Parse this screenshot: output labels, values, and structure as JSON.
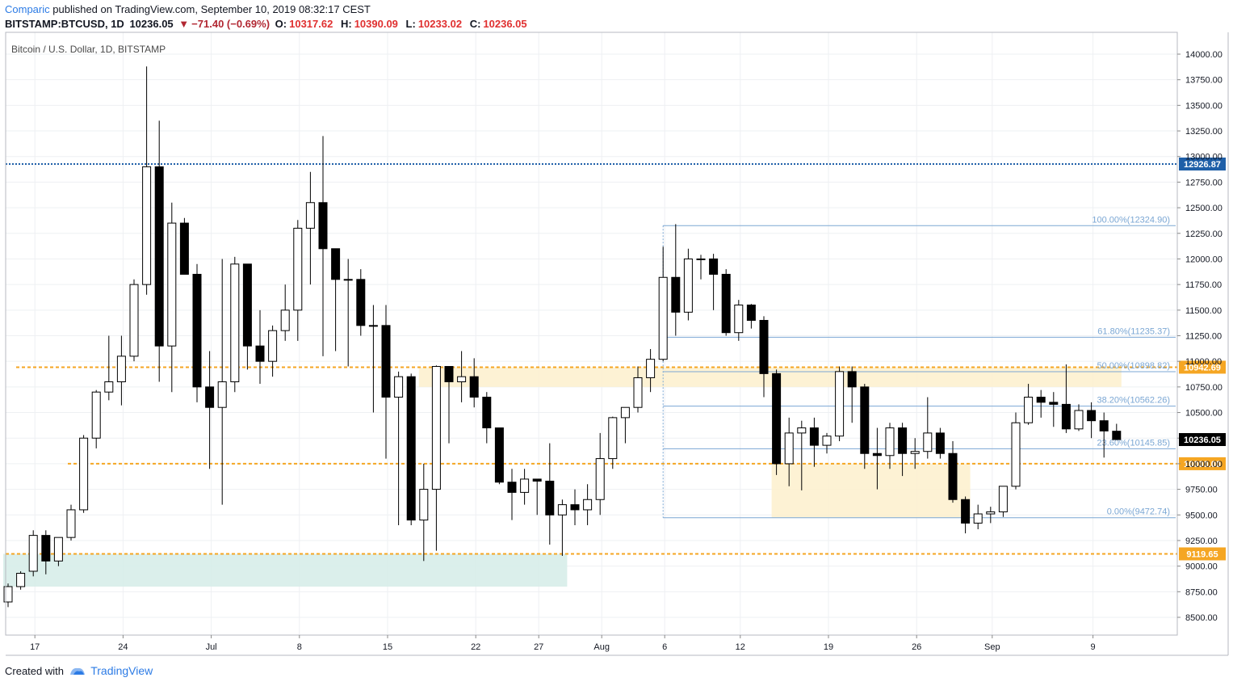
{
  "header": {
    "author": "Comparic",
    "published_text": "published on TradingView.com, September 10, 2019 08:32:17 CEST",
    "symbol": "BITSTAMP:BTCUSD, 1D",
    "last_price": "10236.05",
    "change": "−71.40 (−0.69%)",
    "open_label": "O:",
    "open": "10317.62",
    "high_label": "H:",
    "high": "10390.09",
    "low_label": "L:",
    "low": "10233.02",
    "close_label": "C:",
    "close": "10236.05"
  },
  "footer": {
    "created_with": "Created with",
    "brand": "TradingView"
  },
  "colors": {
    "up_fill": "#ffffff",
    "down_fill": "#000000",
    "wick": "#000000",
    "resistance_blue": "#1f5fa8",
    "level_orange": "#f5a623",
    "fib_blue": "#7ba7d4",
    "zone_yellow": "#fdf0cc",
    "zone_teal": "#d5ece7",
    "axis_text": "#131722",
    "last_price_bg": "#000000"
  },
  "chart_data": {
    "type": "candlestick",
    "title": "Bitcoin / U.S. Dollar, 1D, BITSTAMP",
    "ylim": [
      8300,
      14250
    ],
    "y_ticks": [
      8500,
      8750,
      9000,
      9250,
      9500,
      9750,
      10000,
      10250,
      10500,
      10750,
      11000,
      11250,
      11500,
      11750,
      12000,
      12250,
      12500,
      12750,
      13000,
      13250,
      13500,
      13750,
      14000
    ],
    "x_ticks": [
      {
        "i": 2,
        "label": "17"
      },
      {
        "i": 9,
        "label": "24"
      },
      {
        "i": 16,
        "label": "Jul"
      },
      {
        "i": 23,
        "label": "8"
      },
      {
        "i": 30,
        "label": "15"
      },
      {
        "i": 37,
        "label": "22"
      },
      {
        "i": 42,
        "label": "27"
      },
      {
        "i": 47,
        "label": "Aug"
      },
      {
        "i": 52,
        "label": "6"
      },
      {
        "i": 58,
        "label": "12"
      },
      {
        "i": 65,
        "label": "19"
      },
      {
        "i": 72,
        "label": "26"
      },
      {
        "i": 78,
        "label": "Sep"
      },
      {
        "i": 86,
        "label": "9"
      }
    ],
    "candles": [
      [
        8650,
        8830,
        8600,
        8800
      ],
      [
        8800,
        8950,
        8770,
        8930
      ],
      [
        8950,
        9350,
        8900,
        9300
      ],
      [
        9300,
        9350,
        8920,
        9050
      ],
      [
        9050,
        9280,
        9000,
        9280
      ],
      [
        9280,
        9600,
        9250,
        9550
      ],
      [
        9550,
        10280,
        9520,
        10250
      ],
      [
        10250,
        10720,
        10150,
        10700
      ],
      [
        10700,
        11250,
        10620,
        10800
      ],
      [
        10800,
        11250,
        10570,
        11050
      ],
      [
        11050,
        11800,
        11000,
        11750
      ],
      [
        11750,
        13880,
        11650,
        12900
      ],
      [
        12900,
        13350,
        10800,
        11150
      ],
      [
        11150,
        12550,
        10700,
        12350
      ],
      [
        12350,
        12400,
        11850,
        11850
      ],
      [
        11850,
        11950,
        10600,
        10750
      ],
      [
        10750,
        11100,
        9950,
        10550
      ],
      [
        10550,
        12000,
        9600,
        10800
      ],
      [
        10800,
        12020,
        10700,
        11950
      ],
      [
        11950,
        11950,
        10920,
        11150
      ],
      [
        11150,
        11500,
        10780,
        11000
      ],
      [
        11000,
        11350,
        10850,
        11300
      ],
      [
        11300,
        11750,
        11200,
        11500
      ],
      [
        11500,
        12380,
        11200,
        12300
      ],
      [
        12300,
        12850,
        11750,
        12550
      ],
      [
        12550,
        13200,
        11050,
        12100
      ],
      [
        12100,
        12100,
        11100,
        11800
      ],
      [
        11800,
        12000,
        10950,
        11800
      ],
      [
        11800,
        11900,
        11250,
        11350
      ],
      [
        11350,
        11550,
        10500,
        11350
      ],
      [
        11350,
        11550,
        10050,
        10650
      ],
      [
        10650,
        10900,
        9400,
        10850
      ],
      [
        10850,
        10880,
        9400,
        9450
      ],
      [
        9450,
        10000,
        9050,
        9750
      ],
      [
        9750,
        10960,
        9150,
        10950
      ],
      [
        10950,
        10950,
        10200,
        10800
      ],
      [
        10800,
        11100,
        10600,
        10850
      ],
      [
        10850,
        11030,
        10550,
        10650
      ],
      [
        10650,
        10700,
        10200,
        10350
      ],
      [
        10350,
        10350,
        9800,
        9820
      ],
      [
        9820,
        9950,
        9450,
        9720
      ],
      [
        9720,
        9950,
        9600,
        9850
      ],
      [
        9850,
        9850,
        9500,
        9830
      ],
      [
        9830,
        10200,
        9210,
        9500
      ],
      [
        9500,
        9650,
        9100,
        9600
      ],
      [
        9600,
        9750,
        9400,
        9550
      ],
      [
        9550,
        9800,
        9400,
        9650
      ],
      [
        9650,
        10300,
        9500,
        10050
      ],
      [
        10050,
        10460,
        9950,
        10450
      ],
      [
        10450,
        10550,
        10200,
        10550
      ],
      [
        10550,
        10950,
        10500,
        10840
      ],
      [
        10840,
        11120,
        10700,
        11020
      ],
      [
        11020,
        12120,
        11000,
        11820
      ],
      [
        11820,
        12340,
        11250,
        11480
      ],
      [
        11480,
        12100,
        11400,
        12000
      ],
      [
        12000,
        12040,
        11800,
        12000
      ],
      [
        12000,
        12050,
        11500,
        11850
      ],
      [
        11850,
        11900,
        11250,
        11280
      ],
      [
        11280,
        11600,
        11200,
        11550
      ],
      [
        11550,
        11560,
        11320,
        11400
      ],
      [
        11400,
        11440,
        10650,
        10880
      ],
      [
        10880,
        10920,
        9890,
        10000
      ],
      [
        10000,
        10450,
        9780,
        10300
      ],
      [
        10300,
        10420,
        9740,
        10350
      ],
      [
        10350,
        10450,
        9970,
        10180
      ],
      [
        10180,
        10300,
        10100,
        10270
      ],
      [
        10270,
        10950,
        10220,
        10900
      ],
      [
        10900,
        10950,
        10400,
        10750
      ],
      [
        10750,
        10780,
        9950,
        10100
      ],
      [
        10100,
        10350,
        9750,
        10080
      ],
      [
        10080,
        10400,
        9950,
        10350
      ],
      [
        10350,
        10400,
        9880,
        10100
      ],
      [
        10100,
        10250,
        9950,
        10120
      ],
      [
        10120,
        10650,
        10050,
        10300
      ],
      [
        10300,
        10350,
        10050,
        10100
      ],
      [
        10100,
        10220,
        9620,
        9650
      ],
      [
        9650,
        9680,
        9320,
        9420
      ],
      [
        9420,
        9600,
        9360,
        9510
      ],
      [
        9510,
        9580,
        9420,
        9530
      ],
      [
        9530,
        9780,
        9480,
        9780
      ],
      [
        9780,
        10500,
        9750,
        10400
      ],
      [
        10400,
        10780,
        10380,
        10650
      ],
      [
        10650,
        10720,
        10450,
        10600
      ],
      [
        10600,
        10700,
        10360,
        10580
      ],
      [
        10580,
        10970,
        10300,
        10340
      ],
      [
        10340,
        10580,
        10320,
        10520
      ],
      [
        10520,
        10600,
        10250,
        10420
      ],
      [
        10420,
        10500,
        10060,
        10320
      ],
      [
        10317.62,
        10390.09,
        10233.02,
        10236.05
      ]
    ],
    "horizontal_levels": [
      {
        "value": 12926.87,
        "label": "12926.87",
        "style": "dotted",
        "color": "#1f5fa8"
      },
      {
        "value": 10942.69,
        "label": "10942.69",
        "style": "dashed",
        "color": "#f5a623"
      },
      {
        "value": 10000.0,
        "label": "10000.00",
        "style": "dashed",
        "color": "#f5a623"
      },
      {
        "value": 9119.65,
        "label": "9119.65",
        "style": "dashed",
        "color": "#f5a623"
      }
    ],
    "fibonacci": [
      {
        "value": 12324.9,
        "label": "100.00%(12324.90)"
      },
      {
        "value": 11235.37,
        "label": "61.80%(11235.37)"
      },
      {
        "value": 10898.82,
        "label": "50.00%(10898.82)"
      },
      {
        "value": 10562.26,
        "label": "38.20%(10562.26)"
      },
      {
        "value": 10145.85,
        "label": "23.60%(10145.85)"
      },
      {
        "value": 9472.74,
        "label": "0.00%(9472.74)"
      }
    ],
    "fib_range": {
      "start_i": 52,
      "end_i": 90
    },
    "zones": [
      {
        "from_i": 33,
        "to_i": 88,
        "top": 10942.69,
        "bottom": 10750,
        "color": "#fdf0cc"
      },
      {
        "from_i": 61,
        "to_i": 76,
        "top": 10000,
        "bottom": 9472.74,
        "color": "#fdf0cc"
      },
      {
        "from_i": 0,
        "to_i": 44,
        "top": 9119.65,
        "bottom": 8800,
        "color": "#d5ece7"
      }
    ],
    "last_price_label": "10236.05"
  }
}
